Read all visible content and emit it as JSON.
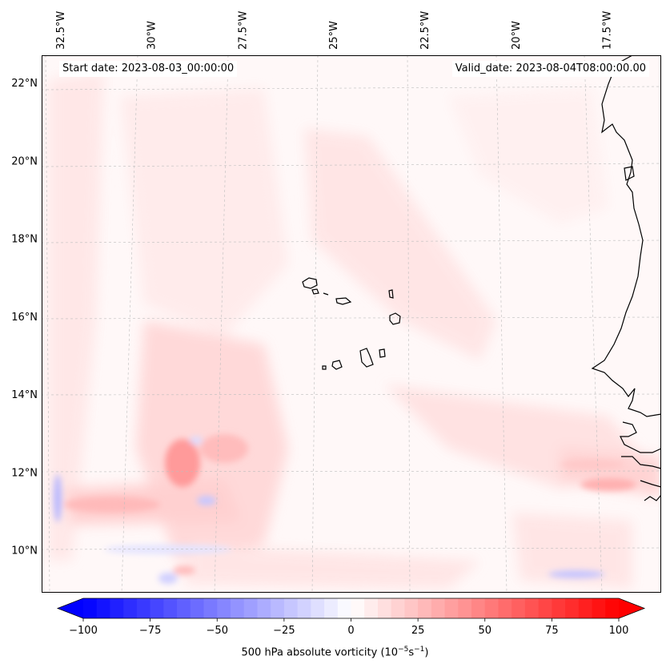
{
  "map": {
    "start_date_label": "Start date: 2023-08-03_00:00:00",
    "valid_date_label": "Valid_date: 2023-08-04T08:00:00.00",
    "lon_labels": [
      "32.5°W",
      "30°W",
      "27.5°W",
      "25°W",
      "22.5°W",
      "20°W",
      "17.5°W"
    ],
    "lat_labels": [
      "22°N",
      "20°N",
      "18°N",
      "16°N",
      "14°N",
      "12°N",
      "10°N"
    ],
    "lon_values": [
      -32.5,
      -30,
      -27.5,
      -25,
      -22.5,
      -20,
      -17.5
    ],
    "lat_values": [
      22,
      20,
      18,
      16,
      14,
      12,
      10
    ],
    "extent": {
      "lon_min": -33.0,
      "lon_max": -16.0,
      "lat_min": 8.9,
      "lat_max": 22.7
    }
  },
  "colorbar": {
    "label": "500 hPa absolute vorticity (10",
    "label_exp1": "−5",
    "label_mid": "s",
    "label_exp2": "−1",
    "label_end": ")",
    "ticks": [
      "−100",
      "−75",
      "−50",
      "−25",
      "0",
      "25",
      "50",
      "75",
      "100"
    ],
    "tick_values": [
      -100,
      -75,
      -50,
      -25,
      0,
      25,
      50,
      75,
      100
    ],
    "vmin": -100,
    "vmax": 100,
    "step": 5,
    "extend": "both",
    "colormap": "bwr"
  },
  "colors": {
    "negative": "#0000ff",
    "zero": "#ffffff",
    "positive": "#ff0000",
    "coast": "#000000"
  }
}
